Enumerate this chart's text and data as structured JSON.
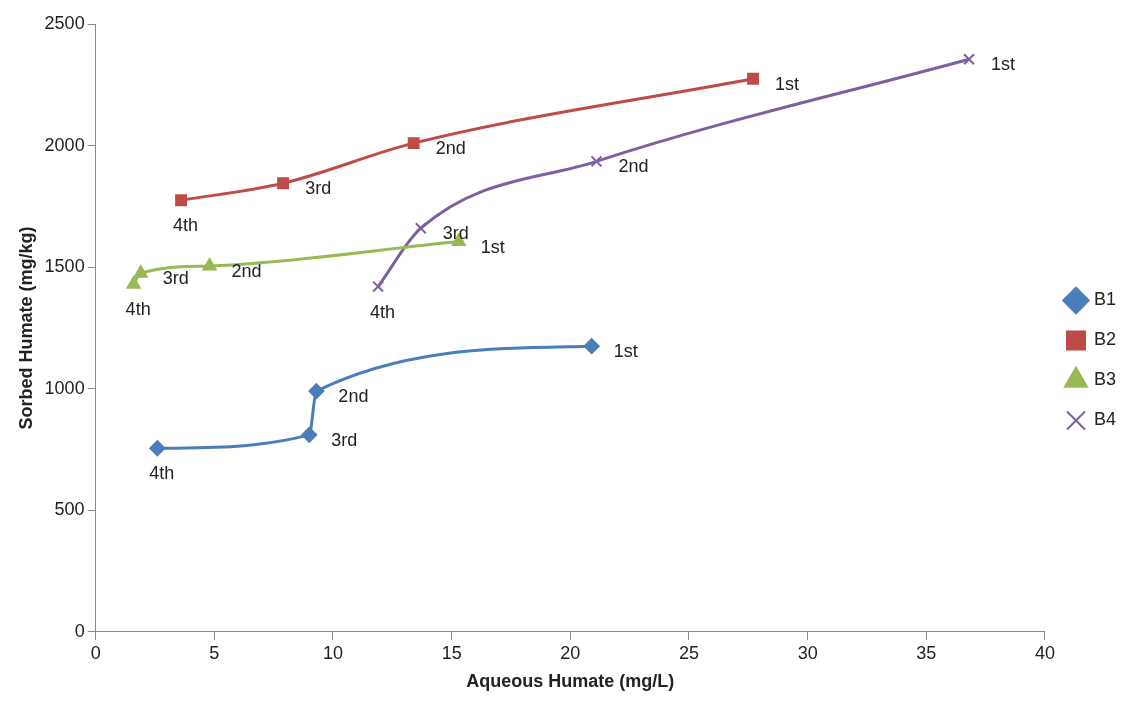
{
  "chart_data": {
    "type": "line",
    "xlabel": "Aqueous Humate (mg/L)",
    "ylabel": "Sorbed Humate (mg/kg)",
    "xlim": [
      0,
      40
    ],
    "xticks": [
      0,
      5,
      10,
      15,
      20,
      25,
      30,
      35,
      40
    ],
    "ylim": [
      0,
      2500
    ],
    "yticks": [
      0,
      500,
      1000,
      1500,
      2000,
      2500
    ],
    "grid": false,
    "legend": "right",
    "line_style": "solid",
    "series": [
      {
        "name": "B1",
        "color": "#4a7ebb",
        "marker": "diamond",
        "x": [
          2.6,
          9.0,
          9.3,
          20.9
        ],
        "values": [
          755,
          810,
          990,
          1175
        ]
      },
      {
        "name": "B2",
        "color": "#be4b48",
        "marker": "square",
        "x": [
          3.6,
          7.9,
          13.4,
          27.7
        ],
        "values": [
          1775,
          1845,
          2010,
          2275
        ]
      },
      {
        "name": "B3",
        "color": "#98b954",
        "marker": "triangle",
        "x": [
          1.6,
          1.9,
          4.8,
          15.3
        ],
        "values": [
          1430,
          1475,
          1505,
          1605
        ]
      },
      {
        "name": "B4",
        "color": "#7d60a0",
        "marker": "cross",
        "x": [
          11.9,
          13.7,
          21.1,
          36.8
        ],
        "values": [
          1420,
          1660,
          1935,
          2355
        ]
      }
    ],
    "annotations": [
      {
        "text": "4th",
        "x": 2.6,
        "y": 755
      },
      {
        "text": "3rd",
        "x": 9.0,
        "y": 810
      },
      {
        "text": "2nd",
        "x": 9.3,
        "y": 990
      },
      {
        "text": "1st",
        "x": 20.9,
        "y": 1175
      },
      {
        "text": "4th",
        "x": 3.6,
        "y": 1775
      },
      {
        "text": "3rd",
        "x": 7.9,
        "y": 1845
      },
      {
        "text": "2nd",
        "x": 13.4,
        "y": 2010
      },
      {
        "text": "1st",
        "x": 27.7,
        "y": 2275
      },
      {
        "text": "4th",
        "x": 1.6,
        "y": 1430
      },
      {
        "text": "3rd",
        "x": 1.9,
        "y": 1475
      },
      {
        "text": "2nd",
        "x": 4.8,
        "y": 1505
      },
      {
        "text": "1st",
        "x": 15.3,
        "y": 1605
      },
      {
        "text": "4th",
        "x": 11.9,
        "y": 1420
      },
      {
        "text": "3rd",
        "x": 13.7,
        "y": 1660
      },
      {
        "text": "2nd",
        "x": 21.1,
        "y": 1935
      },
      {
        "text": "1st",
        "x": 36.8,
        "y": 2355
      }
    ]
  }
}
